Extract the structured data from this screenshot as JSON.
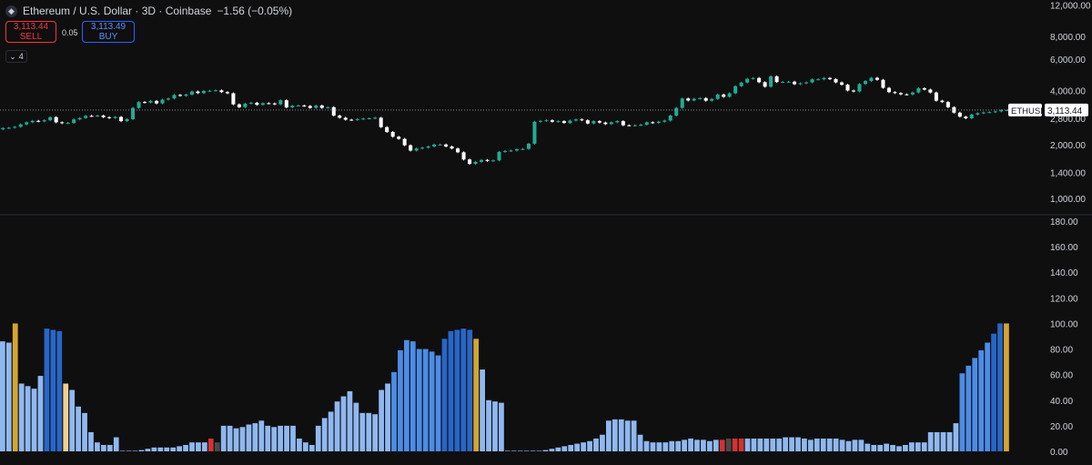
{
  "header": {
    "icon": "ethereum-icon",
    "title": "Ethereum / U.S. Dollar · 3D · Coinbase",
    "change": "−1.56 (−0.05%)"
  },
  "trade": {
    "sell_price": "3,113.44",
    "sell_label": "SELL",
    "spread": "0.05",
    "buy_price": "3,113.49",
    "buy_label": "BUY"
  },
  "indicators": {
    "count": "4",
    "icon": "chevron-down-icon"
  },
  "colors": {
    "up": "#22ab94",
    "down": "#ffffff",
    "hist_light": "#90b8f0",
    "hist_mid": "#4d8ce6",
    "hist_dark": "#2866c7",
    "hist_gold": "#d4a531",
    "hist_cream": "#f0d090",
    "hist_red": "#d23232",
    "hist_gray": "#4a4a4a"
  },
  "chart_data": [
    {
      "type": "line",
      "chart_style": "candlestick",
      "symbol": "ETHUSD",
      "last_price": "3,113.44",
      "y_scale": "log",
      "y_ticks": [
        "12,000.00",
        "8,000.00",
        "6,000.00",
        "4,000.00",
        "3,113.44",
        "2,800.00",
        "2,000.00",
        "1,400.00",
        "1,000.00"
      ],
      "ylim": [
        850,
        12500
      ],
      "close": [
        2470,
        2480,
        2510,
        2590,
        2660,
        2710,
        2690,
        2730,
        2840,
        2660,
        2630,
        2640,
        2760,
        2810,
        2890,
        2880,
        2900,
        2840,
        2810,
        2850,
        2700,
        2770,
        3200,
        3450,
        3430,
        3500,
        3390,
        3560,
        3610,
        3780,
        3740,
        3800,
        3950,
        3870,
        3980,
        3990,
        4010,
        3920,
        3860,
        3350,
        3230,
        3380,
        3420,
        3330,
        3400,
        3390,
        3350,
        3530,
        3220,
        3290,
        3300,
        3280,
        3200,
        3300,
        3200,
        3230,
        2900,
        2820,
        2750,
        2740,
        2770,
        2790,
        2800,
        2820,
        2500,
        2350,
        2210,
        2150,
        1980,
        1850,
        1900,
        1920,
        1950,
        2000,
        2000,
        1950,
        1900,
        1810,
        1650,
        1560,
        1600,
        1640,
        1620,
        1630,
        1820,
        1840,
        1850,
        1880,
        1890,
        2020,
        2680,
        2710,
        2730,
        2680,
        2700,
        2640,
        2720,
        2760,
        2730,
        2620,
        2700,
        2650,
        2600,
        2660,
        2700,
        2560,
        2550,
        2560,
        2580,
        2660,
        2640,
        2680,
        2720,
        2900,
        3200,
        3610,
        3520,
        3600,
        3630,
        3510,
        3590,
        3800,
        3690,
        3860,
        4230,
        4430,
        4650,
        4700,
        4450,
        4200,
        4800,
        4460,
        4470,
        4480,
        4340,
        4390,
        4440,
        4620,
        4620,
        4700,
        4630,
        4440,
        4310,
        4000,
        3950,
        4350,
        4520,
        4710,
        4590,
        4140,
        3920,
        3870,
        3810,
        3800,
        3900,
        4120,
        4050,
        3900,
        3510,
        3450,
        3230,
        3010,
        2860,
        2800,
        2940,
        2990,
        3020,
        3030,
        3060,
        3110,
        3113.44
      ]
    },
    {
      "type": "bar",
      "y_ticks": [
        "180.00",
        "160.00",
        "140.00",
        "120.00",
        "100.00",
        "80.00",
        "60.00",
        "40.00",
        "20.00",
        "0.00"
      ],
      "ylim": [
        0,
        180
      ],
      "values": [
        86,
        85,
        100,
        53,
        51,
        49,
        59,
        96,
        95,
        94,
        53,
        48,
        35,
        30,
        15,
        7,
        5,
        5,
        11,
        0,
        0,
        0,
        1,
        2,
        3,
        3,
        3,
        3,
        4,
        5,
        7,
        7,
        7,
        10,
        7,
        20,
        20,
        18,
        19,
        21,
        22,
        24,
        20,
        19,
        20,
        20,
        20,
        10,
        7,
        5,
        20,
        26,
        31,
        39,
        43,
        47,
        38,
        30,
        30,
        29,
        48,
        53,
        62,
        79,
        87,
        86,
        80,
        80,
        78,
        75,
        88,
        94,
        95,
        96,
        95,
        88,
        64,
        40,
        39,
        38,
        0,
        0,
        0,
        0,
        0,
        0,
        1,
        2,
        3,
        4,
        5,
        6,
        7,
        8,
        10,
        13,
        24,
        25,
        25,
        24,
        24,
        13,
        8,
        7,
        7,
        7,
        8,
        8,
        9,
        10,
        9,
        9,
        8,
        9,
        9,
        10,
        10,
        10,
        10,
        10,
        10,
        10,
        10,
        10,
        11,
        11,
        11,
        10,
        9,
        10,
        10,
        10,
        10,
        9,
        8,
        9,
        9,
        6,
        5,
        5,
        6,
        5,
        4,
        5,
        7,
        7,
        7,
        15,
        15,
        15,
        15,
        22,
        61,
        67,
        73,
        79,
        85,
        92,
        100,
        100
      ],
      "colors": [
        "light",
        "light",
        "gold",
        "light",
        "light",
        "light",
        "light",
        "dark",
        "dark",
        "dark",
        "cream",
        "light",
        "light",
        "light",
        "light",
        "light",
        "light",
        "light",
        "light",
        "light",
        "light",
        "light",
        "light",
        "light",
        "light",
        "light",
        "light",
        "light",
        "light",
        "light",
        "light",
        "light",
        "light",
        "red",
        "gray",
        "light",
        "light",
        "light",
        "light",
        "light",
        "light",
        "light",
        "light",
        "light",
        "light",
        "light",
        "light",
        "light",
        "light",
        "light",
        "light",
        "light",
        "light",
        "light",
        "light",
        "light",
        "light",
        "light",
        "light",
        "light",
        "light",
        "light",
        "mid",
        "mid",
        "mid",
        "mid",
        "mid",
        "mid",
        "mid",
        "mid",
        "dark",
        "dark",
        "dark",
        "dark",
        "dark",
        "gold",
        "light",
        "light",
        "light",
        "light",
        "light",
        "light",
        "light",
        "light",
        "light",
        "light",
        "light",
        "light",
        "light",
        "light",
        "light",
        "light",
        "light",
        "light",
        "light",
        "light",
        "light",
        "light",
        "light",
        "light",
        "light",
        "light",
        "light",
        "light",
        "light",
        "light",
        "light",
        "light",
        "light",
        "light",
        "light",
        "light",
        "light",
        "light",
        "red",
        "gray",
        "red",
        "red",
        "light",
        "light",
        "light",
        "light",
        "light",
        "light",
        "light",
        "light",
        "light",
        "light",
        "light",
        "light",
        "light",
        "light",
        "light",
        "light",
        "light",
        "light",
        "light",
        "light",
        "light",
        "light",
        "light",
        "light",
        "light",
        "light",
        "light",
        "light",
        "light",
        "light",
        "light",
        "light",
        "light",
        "light",
        "mid",
        "mid",
        "mid",
        "mid",
        "mid",
        "dark",
        "dark",
        "gold",
        "dark"
      ]
    }
  ]
}
